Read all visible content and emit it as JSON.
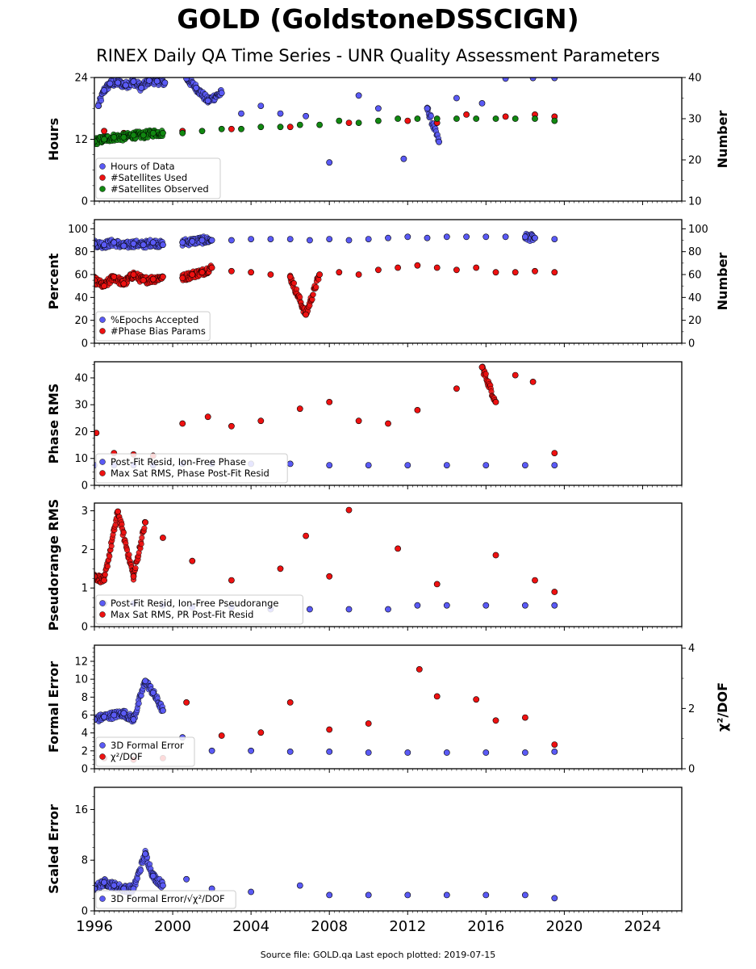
{
  "title": "GOLD (GoldstoneDSSCIGN)",
  "subtitle": "RINEX Daily QA Time Series - UNR Quality Assessment Parameters",
  "footer": "Source file: GOLD.qa Last epoch plotted: 2019-07-15",
  "colors": {
    "blue": "#5a5af5",
    "red": "#ee1111",
    "green": "#118811",
    "edge": "#000000"
  },
  "chart_data": [
    {
      "type": "scatter",
      "ylabel": "Hours",
      "ylabel_right": "Number",
      "xlim": [
        1996,
        2026
      ],
      "ylim": [
        0,
        24
      ],
      "ylim_right": [
        10,
        40
      ],
      "yticks": [
        0,
        12,
        24
      ],
      "yticks_right": [
        10,
        20,
        30,
        40
      ],
      "legend_position": "lower-left",
      "series": [
        {
          "name": "Hours of Data",
          "color": "blue",
          "axis": "left",
          "x": [
            1996.2,
            1996.5,
            1996.8,
            1997.2,
            1997.6,
            1998.0,
            1998.4,
            1998.8,
            1999.2,
            1999.6,
            2000.7,
            2001.2,
            2001.8,
            2002.5,
            2003.5,
            2004.5,
            2005.5,
            2006.8,
            2008.0,
            2009.5,
            2010.5,
            2011.8,
            2013.0,
            2013.6,
            2014.5,
            2015.8,
            2017.0,
            2018.4,
            2019.5
          ],
          "y": [
            18.5,
            21.5,
            22.8,
            23.0,
            22.5,
            23.2,
            22.0,
            23.4,
            23.3,
            23.0,
            23.8,
            22.0,
            19.5,
            21.0,
            17.0,
            18.5,
            17.0,
            16.5,
            7.5,
            20.5,
            18.0,
            8.2,
            18.0,
            11.5,
            20.0,
            19.0,
            23.8,
            23.9,
            23.9
          ]
        },
        {
          "name": "#Satellites Used",
          "color": "red",
          "axis": "right",
          "x": [
            1996.5,
            1997.5,
            1998.5,
            2000.5,
            2003.0,
            2006.0,
            2009.0,
            2012.0,
            2013.5,
            2015.0,
            2017.0,
            2018.5,
            2019.5
          ],
          "y": [
            27.0,
            26.5,
            26.5,
            27.0,
            27.5,
            28.0,
            29.0,
            29.5,
            29.0,
            31.0,
            30.5,
            31.0,
            30.5
          ]
        },
        {
          "name": "#Satellites Observed",
          "color": "green",
          "axis": "right",
          "x": [
            1996.0,
            1996.5,
            1997.0,
            1997.5,
            1998.0,
            1998.5,
            1999.0,
            1999.5,
            2000.5,
            2001.5,
            2002.5,
            2003.5,
            2004.5,
            2005.5,
            2006.5,
            2007.5,
            2008.5,
            2009.5,
            2010.5,
            2011.5,
            2012.5,
            2013.5,
            2014.5,
            2015.5,
            2016.5,
            2017.5,
            2018.5,
            2019.5
          ],
          "y": [
            24.5,
            25.0,
            25.5,
            25.5,
            26.0,
            26.0,
            26.5,
            26.5,
            26.5,
            27.0,
            27.5,
            27.5,
            28.0,
            28.0,
            28.5,
            28.5,
            29.5,
            29.0,
            29.5,
            30.0,
            30.0,
            30.0,
            30.0,
            30.0,
            30.0,
            30.0,
            30.0,
            29.5
          ]
        }
      ]
    },
    {
      "type": "scatter",
      "ylabel": "Percent",
      "ylabel_right": "Number",
      "xlim": [
        1996,
        2026
      ],
      "ylim": [
        0,
        108
      ],
      "ylim_right": [
        0,
        108
      ],
      "yticks": [
        0,
        20,
        40,
        60,
        80,
        100
      ],
      "yticks_right": [
        0,
        20,
        40,
        60,
        80,
        100
      ],
      "legend_position": "lower-left",
      "series": [
        {
          "name": "%Epochs Accepted",
          "color": "blue",
          "axis": "left",
          "x": [
            1996.0,
            1996.5,
            1997.0,
            1997.5,
            1998.0,
            1998.5,
            1999.0,
            1999.5,
            2000.5,
            2001.0,
            2001.5,
            2002.0,
            2003.0,
            2004.0,
            2005.0,
            2006.0,
            2007.0,
            2008.0,
            2009.0,
            2010.0,
            2011.0,
            2012.0,
            2013.0,
            2014.0,
            2015.0,
            2016.0,
            2017.0,
            2018.0,
            2018.5,
            2019.5
          ],
          "y": [
            87,
            86,
            88,
            85,
            87,
            86,
            88,
            86,
            88,
            89,
            90,
            90,
            90,
            91,
            91,
            91,
            90,
            91,
            90,
            91,
            92,
            93,
            92,
            93,
            93,
            93,
            93,
            93,
            92,
            91
          ]
        },
        {
          "name": "#Phase Bias Params",
          "color": "red",
          "axis": "right",
          "x": [
            1996.0,
            1996.5,
            1997.0,
            1997.5,
            1998.0,
            1998.5,
            1999.0,
            1999.5,
            2000.5,
            2001.0,
            2001.5,
            2002.0,
            2003.0,
            2004.0,
            2005.0,
            2006.0,
            2006.8,
            2007.5,
            2008.5,
            2009.5,
            2010.5,
            2011.5,
            2012.5,
            2013.5,
            2014.5,
            2015.5,
            2016.5,
            2017.5,
            2018.5,
            2019.5
          ],
          "y": [
            55,
            50,
            58,
            52,
            60,
            55,
            56,
            58,
            57,
            60,
            62,
            66,
            63,
            62,
            60,
            58,
            25,
            60,
            62,
            60,
            64,
            66,
            68,
            66,
            64,
            66,
            62,
            62,
            63,
            62
          ]
        }
      ]
    },
    {
      "type": "scatter",
      "ylabel": "Phase RMS",
      "xlim": [
        1996,
        2026
      ],
      "ylim": [
        0,
        46
      ],
      "yticks": [
        0,
        10,
        20,
        30,
        40
      ],
      "legend_position": "lower-left",
      "series": [
        {
          "name": "Post-Fit Resid, Ion-Free Phase",
          "color": "blue",
          "axis": "left",
          "x": [
            1996.0,
            1997.0,
            1998.0,
            1999.0,
            2000.5,
            2002.0,
            2004.0,
            2006.0,
            2008.0,
            2010.0,
            2012.0,
            2014.0,
            2016.0,
            2018.0,
            2019.5
          ],
          "y": [
            7.5,
            7.5,
            7.5,
            7.5,
            8.0,
            8.0,
            8.0,
            8.0,
            7.5,
            7.5,
            7.5,
            7.5,
            7.5,
            7.5,
            7.5
          ]
        },
        {
          "name": "Max Sat RMS, Phase Post-Fit Resid",
          "color": "red",
          "axis": "left",
          "x": [
            1996.1,
            1997.0,
            1998.0,
            1999.0,
            2000.5,
            2001.8,
            2003.0,
            2004.5,
            2006.5,
            2008.0,
            2009.5,
            2011.0,
            2012.5,
            2014.5,
            2015.8,
            2016.5,
            2017.5,
            2018.4,
            2019.5
          ],
          "y": [
            19.5,
            12.0,
            11.5,
            11.0,
            23.0,
            25.5,
            22.0,
            24.0,
            28.5,
            31.0,
            24.0,
            23.0,
            28.0,
            36.0,
            44.0,
            31.0,
            41.0,
            38.5,
            12.0
          ]
        }
      ]
    },
    {
      "type": "scatter",
      "ylabel": "Pseudorange RMS",
      "xlim": [
        1996,
        2026
      ],
      "ylim": [
        0,
        3.2
      ],
      "yticks": [
        0,
        1,
        2,
        3
      ],
      "legend_position": "lower-left",
      "series": [
        {
          "name": "Post-Fit Resid, Ion-Free Pseudorange",
          "color": "blue",
          "axis": "left",
          "x": [
            1996.5,
            1998.0,
            1999.5,
            2001.0,
            2003.0,
            2005.0,
            2007.0,
            2009.0,
            2011.0,
            2012.5,
            2014.0,
            2016.0,
            2018.0,
            2019.5
          ],
          "y": [
            0.6,
            0.6,
            0.55,
            0.5,
            0.5,
            0.45,
            0.45,
            0.45,
            0.45,
            0.55,
            0.55,
            0.55,
            0.55,
            0.55
          ]
        },
        {
          "name": "Max Sat RMS, PR Post-Fit Resid",
          "color": "red",
          "axis": "left",
          "x": [
            1996.0,
            1996.5,
            1997.2,
            1998.0,
            1998.6,
            1999.5,
            2001.0,
            2003.0,
            2005.5,
            2006.8,
            2008.0,
            2009.0,
            2011.5,
            2013.5,
            2016.5,
            2018.5,
            2019.5
          ],
          "y": [
            1.3,
            1.2,
            2.98,
            1.3,
            2.7,
            2.3,
            1.7,
            1.2,
            1.5,
            2.35,
            1.3,
            3.02,
            2.02,
            1.1,
            1.85,
            1.2,
            0.9
          ]
        }
      ]
    },
    {
      "type": "scatter",
      "ylabel": "Formal Error",
      "ylabel_right": "χ²/DOF",
      "xlim": [
        1996,
        2026
      ],
      "ylim": [
        0,
        13.8
      ],
      "ylim_right": [
        0,
        4.1
      ],
      "yticks": [
        0,
        2,
        4,
        6,
        8,
        10,
        12
      ],
      "yticks_right": [
        0,
        2,
        4
      ],
      "legend_position": "lower-left",
      "series": [
        {
          "name": "3D Formal Error",
          "color": "blue",
          "axis": "left",
          "x": [
            1996.0,
            1996.5,
            1997.0,
            1997.5,
            1998.0,
            1998.6,
            1999.0,
            1999.5,
            2000.5,
            2002.0,
            2004.0,
            2006.0,
            2008.0,
            2010.0,
            2012.0,
            2014.0,
            2016.0,
            2018.0,
            2019.5
          ],
          "y": [
            5.5,
            5.8,
            6.0,
            6.2,
            5.5,
            9.8,
            8.5,
            6.5,
            3.5,
            2.0,
            2.0,
            1.9,
            1.9,
            1.8,
            1.8,
            1.8,
            1.8,
            1.8,
            1.9
          ]
        },
        {
          "name": "χ²/DOF",
          "color": "red",
          "axis": "right",
          "x": [
            1996.5,
            1998.0,
            1999.5,
            2000.7,
            2002.5,
            2004.5,
            2006.0,
            2008.0,
            2010.0,
            2012.6,
            2013.5,
            2015.5,
            2016.5,
            2018.0,
            2019.5
          ],
          "y": [
            0.35,
            0.3,
            0.35,
            2.2,
            1.1,
            1.2,
            2.2,
            1.3,
            1.5,
            3.3,
            2.4,
            2.3,
            1.6,
            1.7,
            0.8
          ]
        }
      ]
    },
    {
      "type": "scatter",
      "ylabel": "Scaled Error",
      "xlim": [
        1996,
        2026
      ],
      "ylim": [
        0,
        19.5
      ],
      "yticks": [
        0,
        8,
        16
      ],
      "xticks": [
        1996,
        2000,
        2004,
        2008,
        2012,
        2016,
        2020,
        2024
      ],
      "legend_position": "lower-left",
      "series": [
        {
          "name": "3D Formal Error/√χ²/DOF",
          "color": "blue",
          "axis": "left",
          "x": [
            1996.0,
            1996.5,
            1997.0,
            1997.5,
            1998.0,
            1998.6,
            1999.0,
            1999.5,
            2000.7,
            2002.0,
            2004.0,
            2006.5,
            2008.0,
            2010.0,
            2012.0,
            2014.0,
            2016.0,
            2018.0,
            2019.5
          ],
          "y": [
            3.5,
            4.5,
            4.0,
            3.5,
            3.5,
            9.0,
            5.5,
            4.0,
            5.0,
            3.5,
            3.0,
            4.0,
            2.5,
            2.5,
            2.5,
            2.5,
            2.5,
            2.5,
            2.0
          ]
        }
      ]
    }
  ]
}
